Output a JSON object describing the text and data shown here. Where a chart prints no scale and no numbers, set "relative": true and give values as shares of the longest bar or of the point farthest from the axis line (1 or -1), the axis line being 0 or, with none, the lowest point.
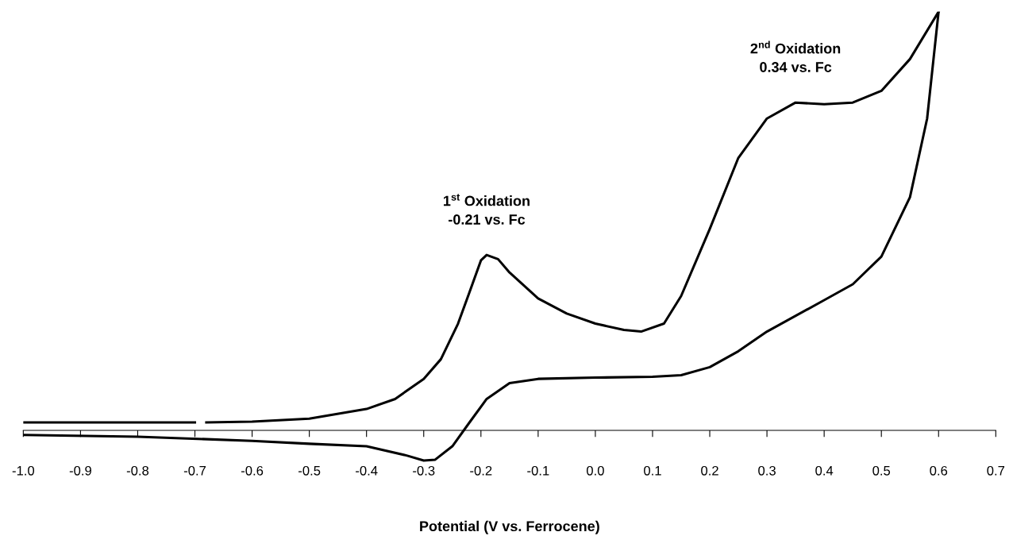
{
  "chart_data": {
    "type": "line",
    "relative": true,
    "xlabel": "Potential (V vs. Ferrocene)",
    "xlim": [
      -1.0,
      0.7
    ],
    "xticks": [
      {
        "value": -1.0,
        "label": "-1.0"
      },
      {
        "value": -0.9,
        "label": "-0.9"
      },
      {
        "value": -0.8,
        "label": "-0.8"
      },
      {
        "value": -0.7,
        "label": "-0.7"
      },
      {
        "value": -0.6,
        "label": "-0.6"
      },
      {
        "value": -0.5,
        "label": "-0.5"
      },
      {
        "value": -0.4,
        "label": "-0.4"
      },
      {
        "value": -0.3,
        "label": "-0.3"
      },
      {
        "value": -0.2,
        "label": "-0.2"
      },
      {
        "value": -0.1,
        "label": "-0.1"
      },
      {
        "value": 0.0,
        "label": "0.0"
      },
      {
        "value": 0.1,
        "label": "0.1"
      },
      {
        "value": 0.2,
        "label": "0.2"
      },
      {
        "value": 0.3,
        "label": "0.3"
      },
      {
        "value": 0.4,
        "label": "0.4"
      },
      {
        "value": 0.5,
        "label": "0.5"
      },
      {
        "value": 0.6,
        "label": "0.6"
      },
      {
        "value": 0.7,
        "label": "0.7"
      }
    ],
    "tick_labels": "x",
    "grid": false,
    "marker": "none",
    "line_style": "solid",
    "series": [
      {
        "color": "#000000",
        "x": [
          -1.0,
          -0.85,
          -0.7,
          -0.69,
          -0.68,
          -0.6,
          -0.5,
          -0.4,
          -0.35,
          -0.3,
          -0.27,
          -0.24,
          -0.22,
          -0.2,
          -0.19,
          -0.17,
          -0.15,
          -0.1,
          -0.05,
          0.0,
          0.05,
          0.08,
          0.12,
          0.15,
          0.2,
          0.25,
          0.3,
          0.35,
          0.4,
          0.45,
          0.5,
          0.55,
          0.6
        ],
        "values": [
          0.019,
          0.019,
          0.019,
          null,
          0.019,
          0.021,
          0.028,
          0.051,
          0.075,
          0.123,
          0.17,
          0.255,
          0.33,
          0.406,
          0.419,
          0.409,
          0.377,
          0.315,
          0.279,
          0.255,
          0.24,
          0.236,
          0.255,
          0.321,
          0.481,
          0.651,
          0.745,
          0.783,
          0.779,
          0.783,
          0.811,
          0.887,
          1.0
        ]
      },
      {
        "color": "#000000",
        "x": [
          0.6,
          0.58,
          0.55,
          0.5,
          0.45,
          0.4,
          0.3,
          0.25,
          0.2,
          0.15,
          0.1,
          0.0,
          -0.1,
          -0.15,
          -0.19,
          -0.22,
          -0.25,
          -0.28,
          -0.3,
          -0.33,
          -0.4,
          -0.5,
          -0.6,
          -0.8,
          -1.0
        ],
        "values": [
          1.0,
          0.745,
          0.557,
          0.415,
          0.349,
          0.311,
          0.236,
          0.189,
          0.151,
          0.132,
          0.128,
          0.126,
          0.123,
          0.113,
          0.075,
          0.019,
          -0.038,
          -0.07,
          -0.072,
          -0.06,
          -0.038,
          -0.032,
          -0.025,
          -0.015,
          -0.011
        ]
      }
    ],
    "annotations": [
      {
        "text": "1$^{st}$ Oxidation\n-0.21 vs. Fc",
        "x": -0.19,
        "y": 0.419
      },
      {
        "text": "2$^{nd}$ Oxidation\n0.34 vs. Fc",
        "x": 0.35,
        "y": 0.783
      }
    ]
  }
}
